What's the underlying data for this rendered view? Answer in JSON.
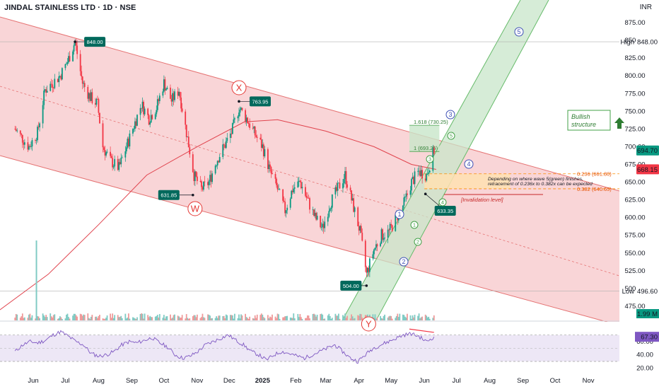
{
  "header": {
    "title": "JINDAL STAINLESS LTD · 1D · NSE",
    "currency": "INR"
  },
  "colors": {
    "up": "#089981",
    "down": "#f23645",
    "ema": "#e0434d",
    "channel": "#f7c7c9",
    "green_channel": "#c8e6c9",
    "rsi": "#7e57c2",
    "rsi_band": "#ede7f6"
  },
  "chart_data": [
    {
      "type": "candlestick",
      "title": "JINDAL STAINLESS LTD · 1D · NSE",
      "ylim": [
        455,
        885
      ],
      "yticks": [
        475,
        500,
        525,
        550,
        575,
        600,
        625,
        650,
        675,
        700,
        725,
        750,
        775,
        800,
        825,
        850,
        875
      ],
      "xticks": [
        "Jun",
        "Jul",
        "Aug",
        "Sep",
        "Oct",
        "Nov",
        "Dec",
        "2025",
        "Feb",
        "Mar",
        "Apr",
        "May",
        "Jun",
        "Jul",
        "Aug",
        "Sep",
        "Oct",
        "Nov"
      ],
      "grid": true,
      "price_labels": [
        {
          "label": "High",
          "value": "848.00"
        },
        {
          "label": "",
          "value": "694.70"
        },
        {
          "label": "",
          "value": "668.15"
        },
        {
          "label": "Low",
          "value": "496.60"
        },
        {
          "label": "",
          "value": "1.99 M"
        }
      ],
      "swing_labels": [
        "848.00",
        "763.95",
        "631.85",
        "504.00",
        "633.35"
      ],
      "wave_labels": [
        "W",
        "X",
        "Y",
        "1",
        "2",
        "3",
        "4",
        "5",
        "(1)",
        "(2)",
        "(3)",
        "(4)",
        "(5)"
      ],
      "fib_levels": [
        {
          "label": "1.618 (730.25)",
          "value": 730.25
        },
        {
          "label": "1 (693.25)",
          "value": 693.25
        },
        {
          "label": "0.236 (661.80)",
          "value": 661.8
        },
        {
          "label": "0.382 (640.65)",
          "value": 640.65
        }
      ],
      "annotations": {
        "bullish": "Bullish structure",
        "note_line1": "Depending on where wave 5(green) finishes,",
        "note_line2": "retracement of 0.236x to 0.382x can be expected",
        "invalidation": "[Invalidation level]"
      },
      "close_series": [
        {
          "date": "2024-05-15",
          "value": 725
        },
        {
          "date": "2024-05-28",
          "value": 700
        },
        {
          "date": "2024-06-05",
          "value": 720
        },
        {
          "date": "2024-06-12",
          "value": 780
        },
        {
          "date": "2024-06-19",
          "value": 790
        },
        {
          "date": "2024-06-26",
          "value": 800
        },
        {
          "date": "2024-07-03",
          "value": 820
        },
        {
          "date": "2024-07-10",
          "value": 848
        },
        {
          "date": "2024-07-17",
          "value": 790
        },
        {
          "date": "2024-07-24",
          "value": 770
        },
        {
          "date": "2024-07-31",
          "value": 760
        },
        {
          "date": "2024-08-05",
          "value": 700
        },
        {
          "date": "2024-08-12",
          "value": 680
        },
        {
          "date": "2024-08-20",
          "value": 670
        },
        {
          "date": "2024-08-27",
          "value": 700
        },
        {
          "date": "2024-09-03",
          "value": 730
        },
        {
          "date": "2024-09-10",
          "value": 760
        },
        {
          "date": "2024-09-17",
          "value": 740
        },
        {
          "date": "2024-09-24",
          "value": 755
        },
        {
          "date": "2024-10-01",
          "value": 790
        },
        {
          "date": "2024-10-08",
          "value": 765
        },
        {
          "date": "2024-10-15",
          "value": 780
        },
        {
          "date": "2024-10-22",
          "value": 720
        },
        {
          "date": "2024-10-29",
          "value": 660
        },
        {
          "date": "2024-11-05",
          "value": 640
        },
        {
          "date": "2024-11-12",
          "value": 650
        },
        {
          "date": "2024-11-19",
          "value": 680
        },
        {
          "date": "2024-11-26",
          "value": 700
        },
        {
          "date": "2024-12-03",
          "value": 720
        },
        {
          "date": "2024-12-10",
          "value": 755
        },
        {
          "date": "2024-12-17",
          "value": 740
        },
        {
          "date": "2024-12-24",
          "value": 720
        },
        {
          "date": "2025-01-01",
          "value": 700
        },
        {
          "date": "2025-01-08",
          "value": 665
        },
        {
          "date": "2025-01-15",
          "value": 640
        },
        {
          "date": "2025-01-22",
          "value": 610
        },
        {
          "date": "2025-01-29",
          "value": 640
        },
        {
          "date": "2025-02-05",
          "value": 650
        },
        {
          "date": "2025-02-12",
          "value": 625
        },
        {
          "date": "2025-02-19",
          "value": 600
        },
        {
          "date": "2025-02-26",
          "value": 585
        },
        {
          "date": "2025-03-05",
          "value": 620
        },
        {
          "date": "2025-03-12",
          "value": 640
        },
        {
          "date": "2025-03-19",
          "value": 660
        },
        {
          "date": "2025-03-26",
          "value": 620
        },
        {
          "date": "2025-04-02",
          "value": 580
        },
        {
          "date": "2025-04-08",
          "value": 520
        },
        {
          "date": "2025-04-15",
          "value": 555
        },
        {
          "date": "2025-04-22",
          "value": 575
        },
        {
          "date": "2025-04-29",
          "value": 580
        },
        {
          "date": "2025-05-06",
          "value": 600
        },
        {
          "date": "2025-05-13",
          "value": 620
        },
        {
          "date": "2025-05-20",
          "value": 650
        },
        {
          "date": "2025-05-27",
          "value": 665
        },
        {
          "date": "2025-06-03",
          "value": 660
        },
        {
          "date": "2025-06-10",
          "value": 694.7
        }
      ]
    },
    {
      "type": "line",
      "title": "RSI",
      "ylim": [
        15,
        90
      ],
      "yticks": [
        20,
        40,
        60
      ],
      "bands": [
        30,
        70
      ],
      "last_value": "67.30",
      "tick_labels": [
        "20.00",
        "40.00",
        "60.00"
      ],
      "values": [
        45,
        55,
        60,
        58,
        62,
        70,
        75,
        68,
        60,
        55,
        42,
        38,
        40,
        45,
        55,
        60,
        58,
        62,
        66,
        58,
        52,
        40,
        35,
        38,
        45,
        55,
        60,
        65,
        70,
        62,
        55,
        45,
        40,
        32,
        40,
        45,
        42,
        38,
        35,
        40,
        45,
        50,
        55,
        45,
        35,
        30,
        40,
        50,
        55,
        60,
        65,
        70,
        72,
        68,
        60,
        67.3
      ]
    }
  ]
}
